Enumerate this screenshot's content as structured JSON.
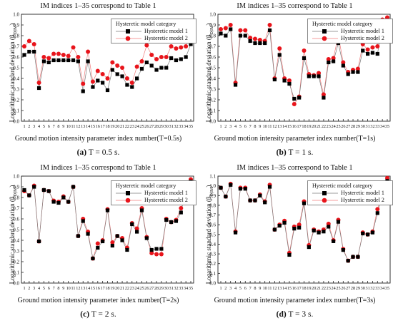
{
  "figure": {
    "panels": [
      {
        "title": "IM indices 1–35 correspond to Table 1",
        "ylabel": "Logarithmic standard deviation (β",
        "ylabel_sub": "D|IM",
        "ylabel_end": ")",
        "xlabel": "Ground motion intensity parameter index number(T=0.5s)",
        "caption_label": "(a)",
        "caption_text": " T = 0.5 s.",
        "legend_title": "Hysteretic model category",
        "legend_labels": [
          "Hysteretic model 1",
          "Hysteretic model 2"
        ]
      },
      {
        "title": "IM indices 1–35 correspond to Table 1",
        "ylabel": "Logarithmic standard deviation (β",
        "ylabel_sub": "D|IM",
        "ylabel_end": ")",
        "xlabel": "Ground motion intensity parameter index number(T=1s)",
        "caption_label": "(b)",
        "caption_text": " T = 1 s.",
        "legend_title": "Hysteretic model category",
        "legend_labels": [
          "Hysteretic model 1",
          "Hysteretic model 2"
        ]
      },
      {
        "title": "IM indices 1–35 correspond to Table 1",
        "ylabel": "Logarithmic standard deviation (β",
        "ylabel_sub": "D|IM",
        "ylabel_end": ")",
        "xlabel": "Ground motion intensity parameter index number(T=2s)",
        "caption_label": "(c)",
        "caption_text": " T = 2 s.",
        "legend_title": "Hysteretic model category",
        "legend_labels": [
          "Hysteretic model 1",
          "Hysteretic model 2"
        ]
      },
      {
        "title": "IM indices 1–35 correspond to Table 1",
        "ylabel": "Logarithmic standard deviation (β",
        "ylabel_sub": "D|IM",
        "ylabel_end": ")",
        "xlabel": "Ground motion intensity parameter index number(T=3s)",
        "caption_label": "(d)",
        "caption_text": " T = 3 s.",
        "legend_title": "Hysteretic model category",
        "legend_labels": [
          "Hysteretic model 1",
          "Hysteretic model 2"
        ]
      }
    ]
  },
  "chart_data": [
    {
      "type": "scatter",
      "title": "IM indices 1–35 correspond to Table 1",
      "xlabel": "Ground motion intensity parameter index number(T=0.5s)",
      "ylabel": "Logarithmic standard deviation (βD|IM)",
      "x": [
        1,
        2,
        3,
        4,
        5,
        6,
        7,
        8,
        9,
        10,
        11,
        12,
        13,
        14,
        15,
        16,
        17,
        18,
        19,
        20,
        21,
        22,
        23,
        24,
        25,
        26,
        27,
        28,
        29,
        30,
        31,
        32,
        33,
        34,
        35
      ],
      "xlim": [
        1,
        35
      ],
      "ylim": [
        0.0,
        1.0
      ],
      "yticks": [
        0.0,
        0.1,
        0.2,
        0.3,
        0.4,
        0.5,
        0.6,
        0.7,
        0.8,
        0.9,
        1.0
      ],
      "grid": false,
      "legend": "top-right",
      "legend_title": "Hysteretic model category",
      "series": [
        {
          "name": "Hysteretic model 1",
          "marker": "square",
          "color": "#000000",
          "values": [
            0.62,
            0.65,
            0.65,
            0.31,
            0.56,
            0.55,
            0.57,
            0.57,
            0.57,
            0.57,
            0.57,
            0.56,
            0.28,
            0.56,
            0.32,
            0.38,
            0.36,
            0.29,
            0.48,
            0.44,
            0.42,
            0.34,
            0.32,
            0.4,
            0.49,
            0.55,
            0.52,
            0.48,
            0.5,
            0.5,
            0.59,
            0.57,
            0.58,
            0.6,
            0.72
          ]
        },
        {
          "name": "Hysteretic model 2",
          "marker": "circle",
          "color": "#e8141b",
          "values": [
            0.7,
            0.75,
            0.72,
            0.36,
            0.6,
            0.59,
            0.63,
            0.63,
            0.62,
            0.61,
            0.69,
            0.6,
            0.35,
            0.65,
            0.37,
            0.47,
            0.44,
            0.4,
            0.55,
            0.52,
            0.5,
            0.4,
            0.36,
            0.51,
            0.56,
            0.71,
            0.62,
            0.58,
            0.6,
            0.6,
            0.7,
            0.68,
            0.69,
            0.7,
            0.82
          ]
        }
      ]
    },
    {
      "type": "scatter",
      "title": "IM indices 1–35 correspond to Table 1",
      "xlabel": "Ground motion intensity parameter index number(T=1s)",
      "ylabel": "Logarithmic standard deviation (βD|IM)",
      "x": [
        1,
        2,
        3,
        4,
        5,
        6,
        7,
        8,
        9,
        10,
        11,
        12,
        13,
        14,
        15,
        16,
        17,
        18,
        19,
        20,
        21,
        22,
        23,
        24,
        25,
        26,
        27,
        28,
        29,
        30,
        31,
        32,
        33,
        34,
        35
      ],
      "xlim": [
        1,
        35
      ],
      "ylim": [
        0.0,
        1.0
      ],
      "yticks": [
        0.0,
        0.1,
        0.2,
        0.3,
        0.4,
        0.5,
        0.6,
        0.7,
        0.8,
        0.9,
        1.0
      ],
      "grid": false,
      "legend": "top-right",
      "legend_title": "Hysteretic model category",
      "series": [
        {
          "name": "Hysteretic model 1",
          "marker": "square",
          "color": "#000000",
          "values": [
            0.82,
            0.8,
            0.86,
            0.34,
            0.8,
            0.8,
            0.75,
            0.73,
            0.73,
            0.73,
            0.85,
            0.39,
            0.62,
            0.38,
            0.35,
            0.21,
            0.22,
            0.59,
            0.42,
            0.42,
            0.42,
            0.22,
            0.55,
            0.56,
            0.73,
            0.52,
            0.44,
            0.46,
            0.46,
            0.66,
            0.63,
            0.64,
            0.63,
            0.9,
            0.91
          ]
        },
        {
          "name": "Hysteretic model 2",
          "marker": "circle",
          "color": "#e8141b",
          "values": [
            0.86,
            0.87,
            0.9,
            0.36,
            0.85,
            0.85,
            0.78,
            0.77,
            0.76,
            0.75,
            0.9,
            0.4,
            0.68,
            0.4,
            0.38,
            0.16,
            0.23,
            0.66,
            0.44,
            0.43,
            0.45,
            0.25,
            0.58,
            0.59,
            0.8,
            0.55,
            0.46,
            0.48,
            0.49,
            0.72,
            0.67,
            0.69,
            0.7,
            0.95,
            0.97
          ]
        }
      ]
    },
    {
      "type": "scatter",
      "title": "IM indices 1–35 correspond to Table 1",
      "xlabel": "Ground motion intensity parameter index number(T=2s)",
      "ylabel": "Logarithmic standard deviation (βD|IM)",
      "x": [
        1,
        2,
        3,
        4,
        5,
        6,
        7,
        8,
        9,
        10,
        11,
        12,
        13,
        14,
        15,
        16,
        17,
        18,
        19,
        20,
        21,
        22,
        23,
        24,
        25,
        26,
        27,
        28,
        29,
        30,
        31,
        32,
        33,
        34,
        35
      ],
      "xlim": [
        1,
        35
      ],
      "ylim": [
        0.0,
        1.0
      ],
      "yticks": [
        0.0,
        0.1,
        0.2,
        0.3,
        0.4,
        0.5,
        0.6,
        0.7,
        0.8,
        0.9,
        1.0
      ],
      "grid": false,
      "legend": "top-right",
      "legend_title": "Hysteretic model category",
      "series": [
        {
          "name": "Hysteretic model 1",
          "marker": "square",
          "color": "#000000",
          "values": [
            0.87,
            0.82,
            0.9,
            0.39,
            0.87,
            0.86,
            0.76,
            0.75,
            0.8,
            0.76,
            0.9,
            0.44,
            0.58,
            0.46,
            0.23,
            0.33,
            0.39,
            0.68,
            0.35,
            0.44,
            0.4,
            0.31,
            0.55,
            0.48,
            0.68,
            0.42,
            0.31,
            0.32,
            0.32,
            0.59,
            0.57,
            0.58,
            0.66,
            0.88,
            0.95
          ]
        },
        {
          "name": "Hysteretic model 2",
          "marker": "circle",
          "color": "#e8141b",
          "values": [
            0.86,
            0.82,
            0.91,
            0.39,
            0.87,
            0.86,
            0.77,
            0.76,
            0.81,
            0.76,
            0.9,
            0.44,
            0.6,
            0.48,
            0.23,
            0.37,
            0.4,
            0.69,
            0.38,
            0.44,
            0.42,
            0.33,
            0.56,
            0.51,
            0.7,
            0.43,
            0.28,
            0.27,
            0.27,
            0.6,
            0.57,
            0.59,
            0.7,
            0.89,
            0.97
          ]
        }
      ]
    },
    {
      "type": "scatter",
      "title": "IM indices 1–35 correspond to Table 1",
      "xlabel": "Ground motion intensity parameter index number(T=3s)",
      "ylabel": "Logarithmic standard deviation (βD|IM)",
      "x": [
        1,
        2,
        3,
        4,
        5,
        6,
        7,
        8,
        9,
        10,
        11,
        12,
        13,
        14,
        15,
        16,
        17,
        18,
        19,
        20,
        21,
        22,
        23,
        24,
        25,
        26,
        27,
        28,
        29,
        30,
        31,
        32,
        33,
        34,
        35
      ],
      "xlim": [
        1,
        35
      ],
      "ylim": [
        0.0,
        1.1
      ],
      "yticks": [
        0.0,
        0.1,
        0.2,
        0.3,
        0.4,
        0.5,
        0.6,
        0.7,
        0.8,
        0.9,
        1.0,
        1.1
      ],
      "grid": false,
      "legend": "top-right",
      "legend_title": "Hysteretic model category",
      "series": [
        {
          "name": "Hysteretic model 1",
          "marker": "square",
          "color": "#000000",
          "values": [
            0.98,
            0.89,
            1.01,
            0.52,
            0.97,
            0.97,
            0.85,
            0.85,
            0.9,
            0.83,
            0.99,
            0.55,
            0.59,
            0.62,
            0.29,
            0.56,
            0.57,
            0.82,
            0.37,
            0.54,
            0.52,
            0.53,
            0.58,
            0.43,
            0.63,
            0.34,
            0.23,
            0.27,
            0.27,
            0.51,
            0.5,
            0.52,
            0.72,
            0.91,
            1.05
          ]
        },
        {
          "name": "Hysteretic model 2",
          "marker": "circle",
          "color": "#e8141b",
          "values": [
            0.98,
            0.89,
            1.02,
            0.53,
            0.98,
            0.98,
            0.85,
            0.85,
            0.91,
            0.84,
            1.01,
            0.55,
            0.6,
            0.64,
            0.31,
            0.58,
            0.6,
            0.84,
            0.39,
            0.55,
            0.53,
            0.55,
            0.61,
            0.44,
            0.65,
            0.35,
            0.23,
            0.27,
            0.27,
            0.52,
            0.5,
            0.53,
            0.76,
            0.92,
            1.08
          ]
        }
      ]
    }
  ]
}
